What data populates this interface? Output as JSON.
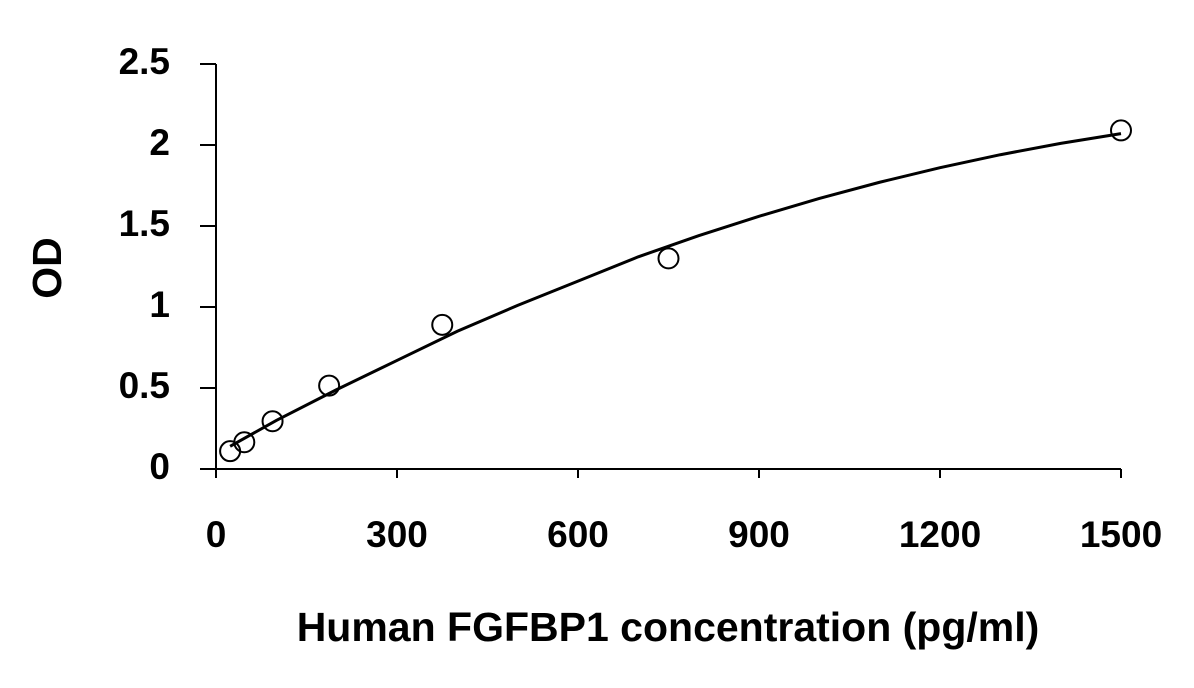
{
  "chart_data": {
    "type": "scatter",
    "xlabel": "Human FGFBP1 concentration (pg/ml)",
    "ylabel": "OD",
    "xlim": [
      0,
      1500
    ],
    "ylim": [
      0,
      2.5
    ],
    "xticks": [
      0,
      300,
      600,
      900,
      1200,
      1500
    ],
    "yticks": [
      0,
      0.5,
      1,
      1.5,
      2,
      2.5
    ],
    "series": [
      {
        "type": "scatter",
        "color": "#000000",
        "x": [
          23.4,
          46.9,
          93.75,
          187.5,
          375,
          750,
          1500
        ],
        "values": [
          0.11,
          0.165,
          0.295,
          0.515,
          0.89,
          1.3,
          2.09
        ]
      },
      {
        "type": "line",
        "color": "#000000",
        "x": [
          23.4,
          100,
          200,
          300,
          400,
          500,
          600,
          700,
          800,
          900,
          1000,
          1100,
          1200,
          1300,
          1400,
          1500
        ],
        "values": [
          0.14,
          0.3,
          0.49,
          0.67,
          0.85,
          1.01,
          1.16,
          1.31,
          1.44,
          1.56,
          1.67,
          1.77,
          1.86,
          1.94,
          2.01,
          2.07
        ]
      }
    ]
  }
}
